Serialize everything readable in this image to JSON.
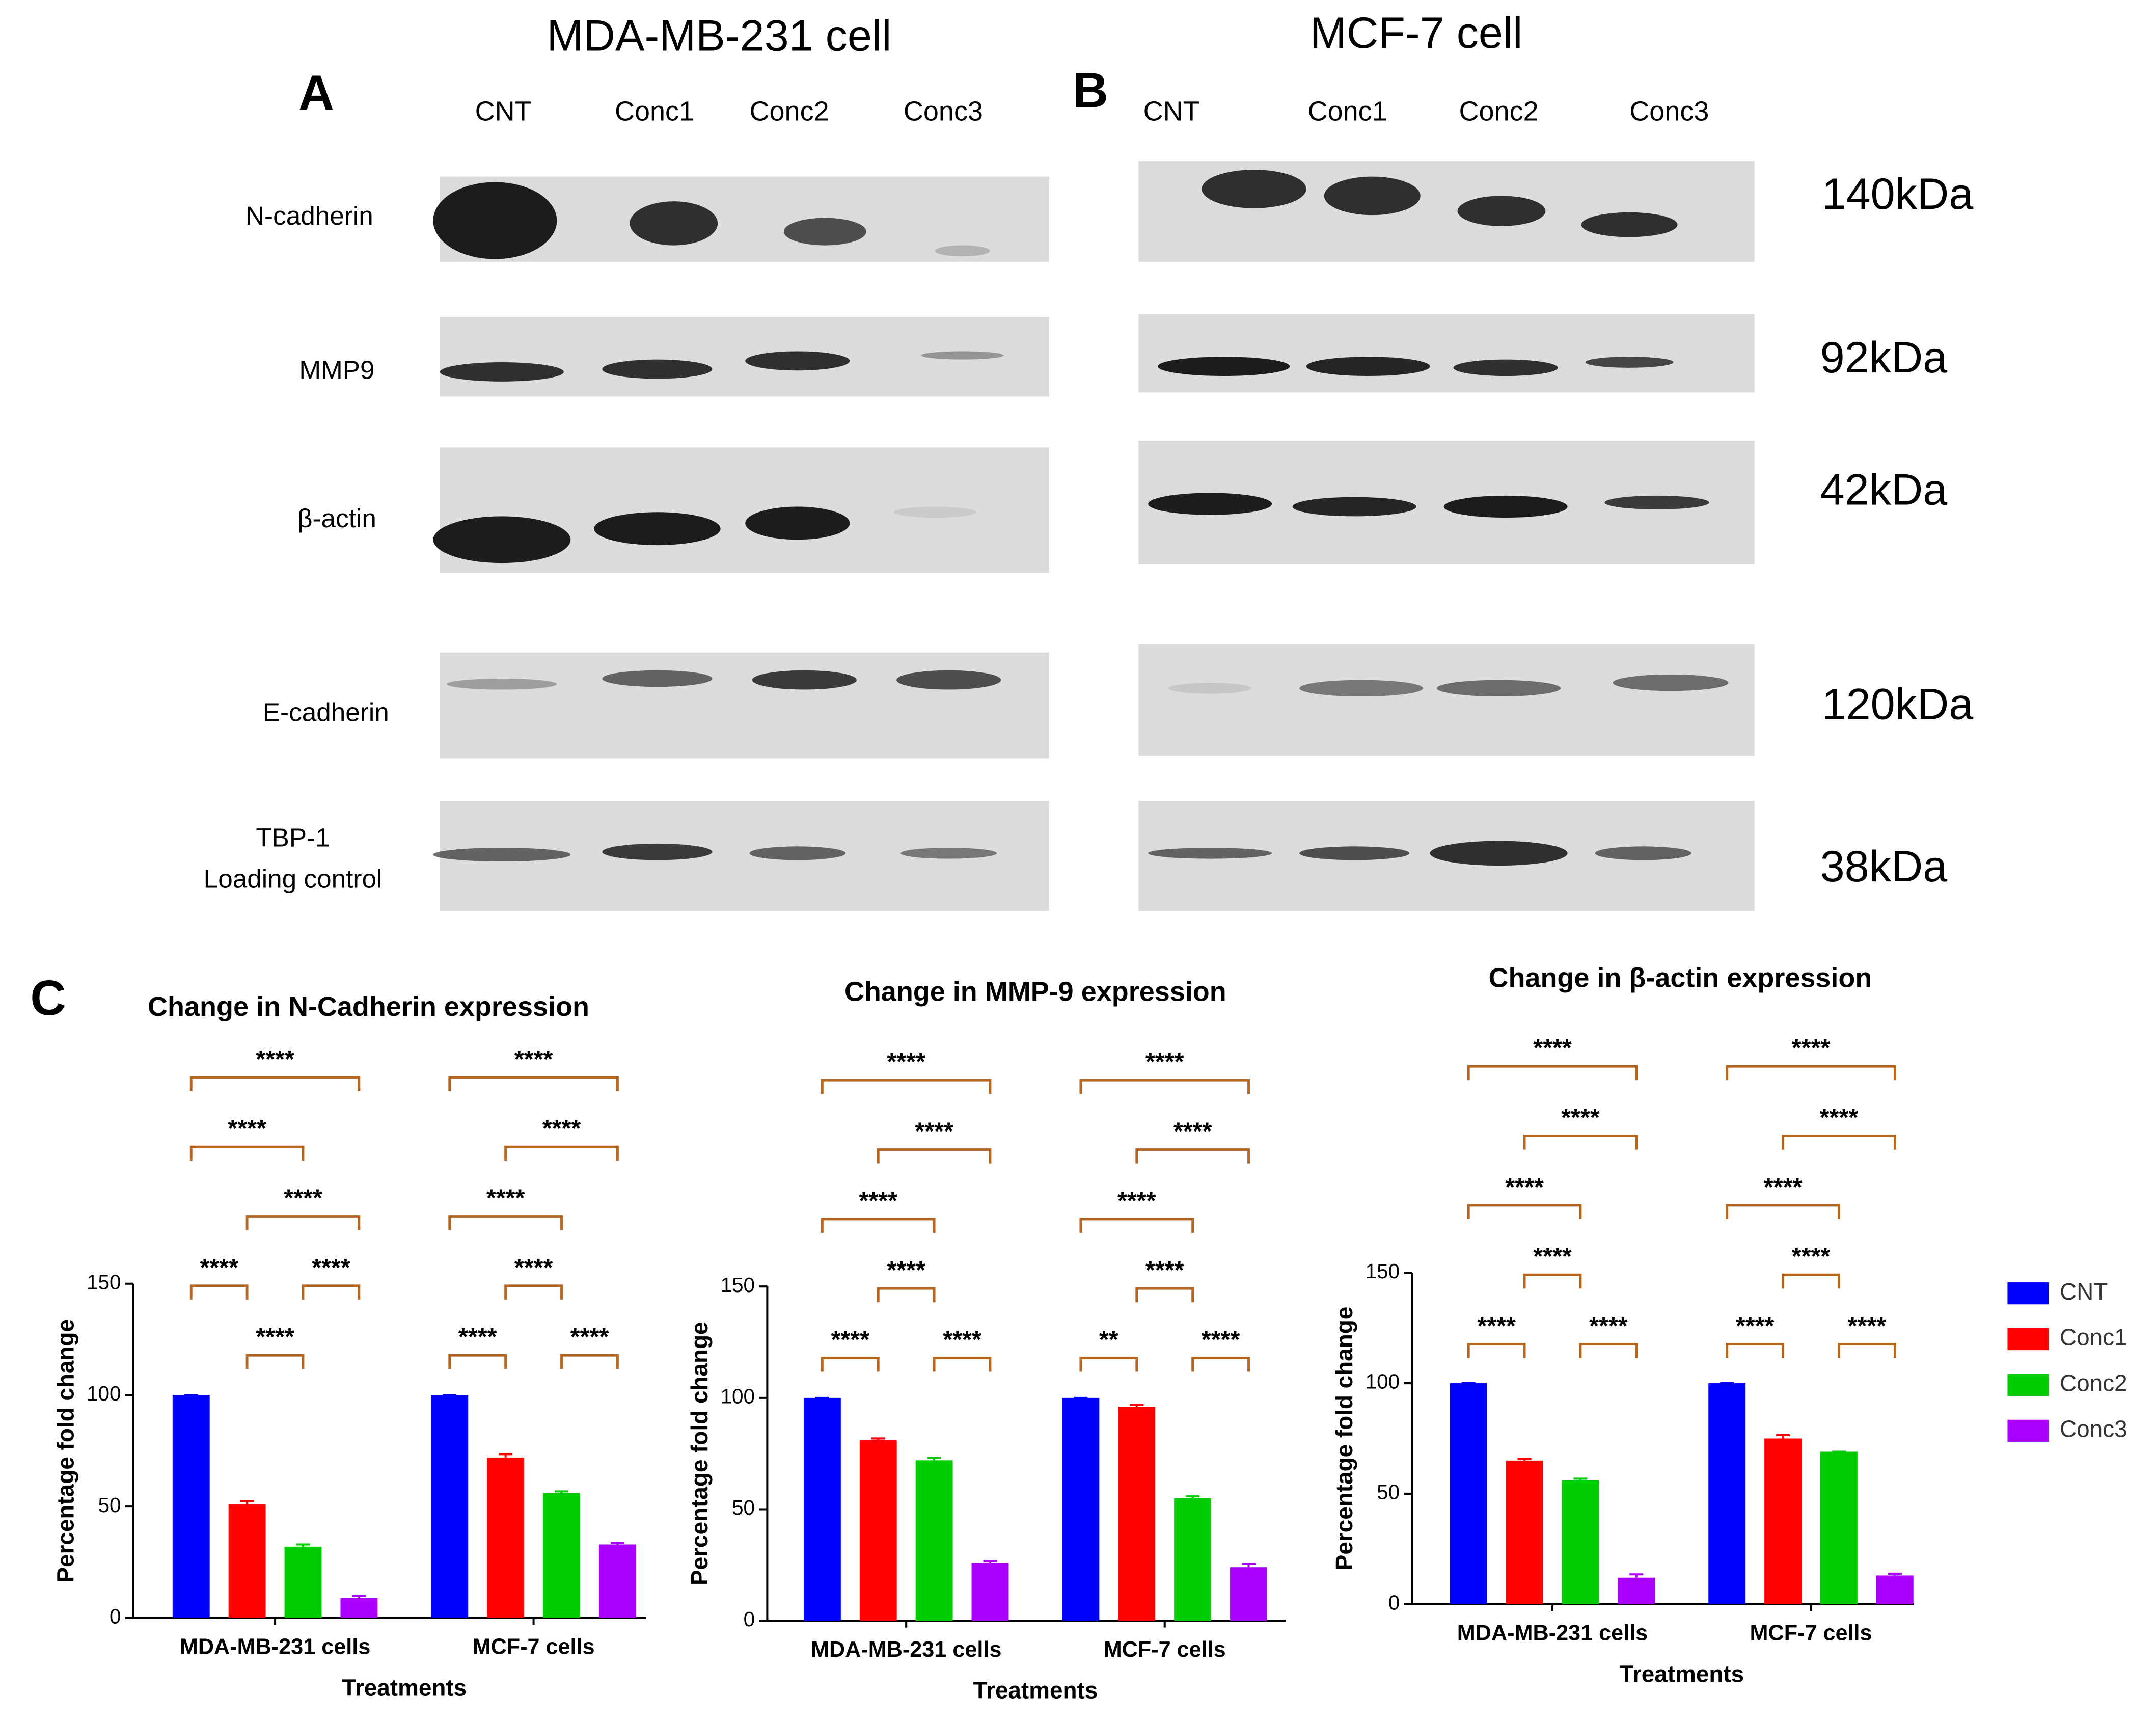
{
  "figure": {
    "panel_a": "A",
    "panel_b": "B",
    "panel_c": "C",
    "title_a": "MDA-MB-231 cell",
    "title_b": "MCF-7 cell",
    "lanes_a": [
      "CNT",
      "Conc1",
      "Conc2",
      "Conc3"
    ],
    "lanes_b": [
      "CNT",
      "Conc1",
      "Conc2",
      "Conc3"
    ],
    "rows": [
      "N-cadherin",
      "MMP9",
      "β-actin",
      "E-cadherin",
      "TBP-1"
    ],
    "loading_control": "Loading control",
    "sizes": [
      "140kDa",
      "92kDa",
      "42kDa",
      "120kDa",
      "38kDa"
    ]
  },
  "chart_data": [
    {
      "type": "bar",
      "title": "Change in N-Cadherin expression",
      "categories": [
        "MDA-MB-231 cells",
        "MCF-7 cells"
      ],
      "series": [
        {
          "color": "#0000ff",
          "values": [
            100,
            100
          ],
          "errors": [
            0,
            0
          ]
        },
        {
          "color": "#ff0000",
          "values": [
            51,
            72
          ],
          "errors": [
            1.5,
            1.5
          ]
        },
        {
          "color": "#00cc00",
          "values": [
            32,
            56
          ],
          "errors": [
            1,
            0.8
          ]
        },
        {
          "color": "#aa00ff",
          "values": [
            9,
            33
          ],
          "errors": [
            0.8,
            0.8
          ]
        }
      ],
      "ylim": [
        0,
        150
      ],
      "yticks": [
        0,
        50,
        100,
        150
      ],
      "ylabel": "Percentage fold change",
      "xlabel": "Treatments",
      "annotations": [
        [
          "****",
          "****",
          "****",
          "****",
          "****",
          "****"
        ],
        [
          "****",
          "****",
          "****",
          "****",
          "****",
          "****"
        ]
      ]
    },
    {
      "type": "bar",
      "title": "Change in MMP-9 expression",
      "categories": [
        "MDA-MB-231 cells",
        "MCF-7 cells"
      ],
      "series": [
        {
          "color": "#0000ff",
          "values": [
            100,
            100
          ],
          "errors": [
            0,
            0
          ]
        },
        {
          "color": "#ff0000",
          "values": [
            81,
            96
          ],
          "errors": [
            0.8,
            0.8
          ]
        },
        {
          "color": "#00cc00",
          "values": [
            72,
            55
          ],
          "errors": [
            1,
            0.8
          ]
        },
        {
          "color": "#aa00ff",
          "values": [
            26,
            24
          ],
          "errors": [
            0.8,
            1.5
          ]
        }
      ],
      "ylim": [
        0,
        150
      ],
      "yticks": [
        0,
        50,
        100,
        150
      ],
      "ylabel": "Percentage fold change",
      "xlabel": "Treatments",
      "annotations": [
        [
          "****",
          "****",
          "****",
          "****",
          "****",
          "****"
        ],
        [
          "**",
          "****",
          "****",
          "****",
          "****",
          "****"
        ]
      ]
    },
    {
      "type": "bar",
      "title": "Change in β-actin expression",
      "categories": [
        "MDA-MB-231 cells",
        "MCF-7 cells"
      ],
      "series": [
        {
          "name": "CNT",
          "color": "#0000ff",
          "values": [
            100,
            100
          ],
          "errors": [
            0,
            0
          ]
        },
        {
          "name": "Conc1",
          "color": "#ff0000",
          "values": [
            65,
            75
          ],
          "errors": [
            0.8,
            1.5
          ]
        },
        {
          "name": "Conc2",
          "color": "#00cc00",
          "values": [
            56,
            69
          ],
          "errors": [
            0.8,
            0
          ]
        },
        {
          "name": "Conc3",
          "color": "#aa00ff",
          "values": [
            12,
            13
          ],
          "errors": [
            1.5,
            0.8
          ]
        }
      ],
      "ylim": [
        0,
        150
      ],
      "yticks": [
        0,
        50,
        100,
        150
      ],
      "ylabel": "Percentage fold change",
      "xlabel": "Treatments",
      "annotations": [
        [
          "****",
          "****",
          "****",
          "****",
          "****",
          "****"
        ],
        [
          "****",
          "****",
          "****",
          "****",
          "****",
          "****"
        ]
      ],
      "legend": "right"
    }
  ]
}
